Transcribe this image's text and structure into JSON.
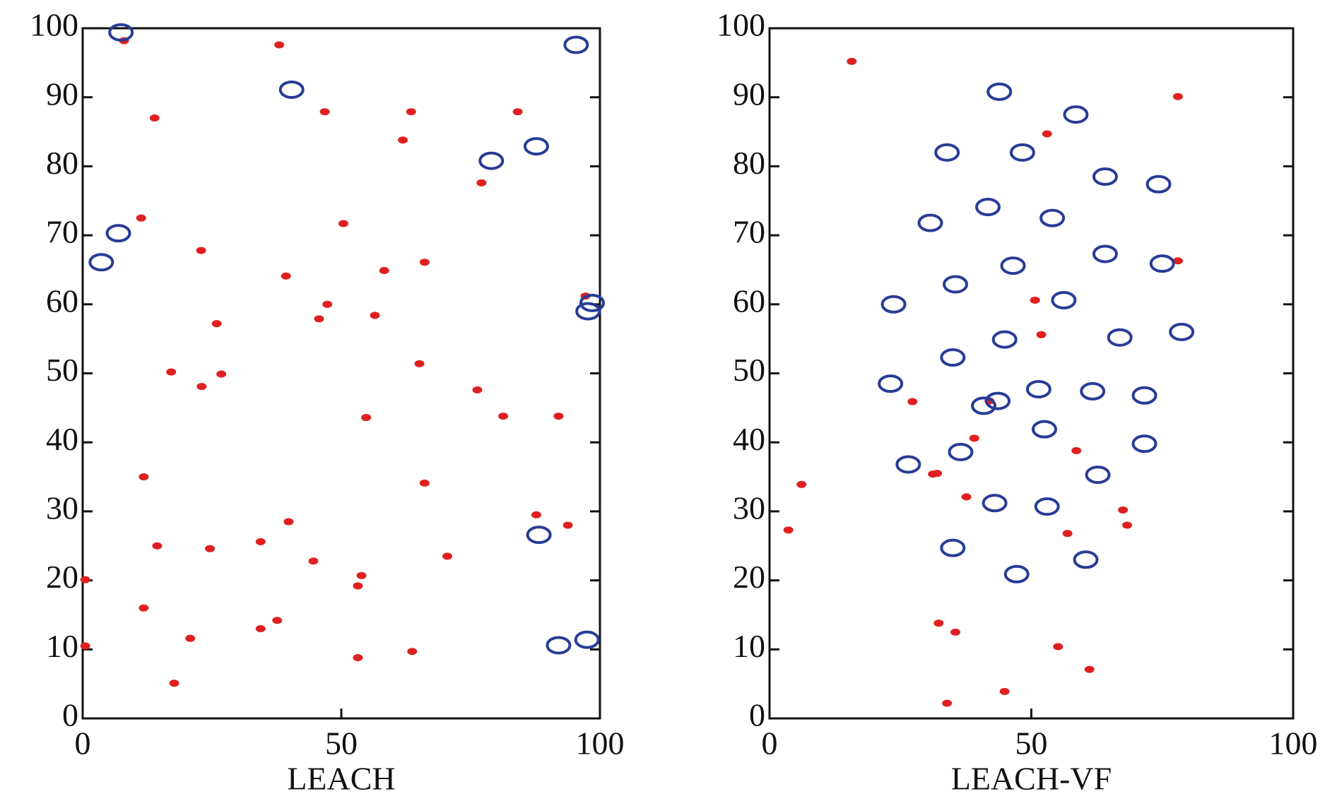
{
  "chart_data": [
    {
      "type": "scatter",
      "xlabel": "LEACH",
      "xlim": [
        0,
        100
      ],
      "ylim": [
        0,
        100
      ],
      "xticks": [
        0,
        50,
        100
      ],
      "yticks": [
        0,
        10,
        20,
        30,
        40,
        50,
        60,
        70,
        80,
        90,
        100
      ],
      "series": [
        {
          "color": "#e02020",
          "marker": "dot",
          "x": [
            8,
            38,
            13.9,
            46.8,
            63.5,
            84.1,
            61.9,
            77.1,
            11.3,
            50.4,
            22.9,
            39.3,
            58.3,
            66.1,
            97.2,
            47.3,
            45.7,
            56.5,
            25.9,
            17.1,
            26.8,
            65.1,
            23,
            76.3,
            54.8,
            81.3,
            92,
            11.8,
            66.1,
            87.7,
            93.8,
            39.8,
            14.4,
            24.6,
            34.4,
            70.5,
            44.6,
            53.9,
            53.2,
            0.5,
            11.8,
            37.6,
            34.4,
            20.8,
            0.5,
            63.7,
            53.2,
            17.7
          ],
          "y": [
            98.2,
            97.6,
            87,
            87.9,
            87.9,
            87.9,
            83.8,
            77.6,
            72.5,
            71.7,
            67.8,
            64.1,
            64.9,
            66.1,
            61.2,
            60,
            57.9,
            58.4,
            57.2,
            50.2,
            49.9,
            51.4,
            48.1,
            47.6,
            43.6,
            43.8,
            43.8,
            35,
            34.1,
            29.5,
            28,
            28.5,
            25,
            24.6,
            25.6,
            23.5,
            22.8,
            20.7,
            19.2,
            20.1,
            16,
            14.2,
            13,
            11.6,
            10.5,
            9.7,
            8.8,
            5.1
          ]
        },
        {
          "color": "#283c96",
          "marker": "circle",
          "x": [
            7.4,
            40.4,
            95.4,
            79,
            87.7,
            6.9,
            3.6,
            98.5,
            97.7,
            88.2,
            92,
            97.5
          ],
          "y": [
            99.4,
            91.1,
            97.6,
            80.8,
            82.9,
            70.3,
            66.1,
            60.2,
            59,
            26.6,
            10.6,
            11.4
          ]
        }
      ]
    },
    {
      "type": "scatter",
      "xlabel": "LEACH-VF",
      "xlim": [
        0,
        100
      ],
      "ylim": [
        0,
        100
      ],
      "xticks": [
        0,
        50,
        100
      ],
      "yticks": [
        0,
        10,
        20,
        30,
        40,
        50,
        60,
        70,
        80,
        90,
        100
      ],
      "series": [
        {
          "color": "#e02020",
          "marker": "dot",
          "x": [
            15.7,
            78,
            53,
            78,
            50.7,
            51.9,
            27.3,
            42,
            39.1,
            58.6,
            6.1,
            32,
            31.2,
            37.6,
            67.5,
            68.3,
            3.6,
            56.9,
            32.3,
            35.5,
            55.1,
            61.1,
            44.9,
            33.9
          ],
          "y": [
            95.2,
            90.1,
            84.7,
            66.3,
            60.6,
            55.6,
            45.9,
            46,
            40.6,
            38.8,
            33.9,
            35.5,
            35.4,
            32.1,
            30.2,
            28,
            27.3,
            26.8,
            13.8,
            12.5,
            10.4,
            7.1,
            3.9,
            2.2
          ]
        },
        {
          "color": "#283c96",
          "marker": "circle",
          "x": [
            43.9,
            58.5,
            33.9,
            48.3,
            64.1,
            74.3,
            41.7,
            54,
            30.7,
            64.1,
            46.5,
            75,
            35.5,
            56.2,
            23.7,
            78.7,
            44.9,
            66.9,
            35,
            23.1,
            51.4,
            61.7,
            71.6,
            43.6,
            40.9,
            52.5,
            71.6,
            36.5,
            26.5,
            62.7,
            43,
            53,
            35,
            60.4,
            47.2
          ],
          "y": [
            90.8,
            87.5,
            82,
            82,
            78.5,
            77.4,
            74.1,
            72.5,
            71.8,
            67.3,
            65.6,
            65.9,
            62.9,
            60.6,
            60,
            56,
            54.9,
            55.2,
            52.3,
            48.5,
            47.7,
            47.4,
            46.8,
            46,
            45.3,
            41.9,
            39.8,
            38.6,
            36.8,
            35.3,
            31.2,
            30.7,
            24.7,
            23,
            20.9
          ]
        }
      ]
    }
  ]
}
